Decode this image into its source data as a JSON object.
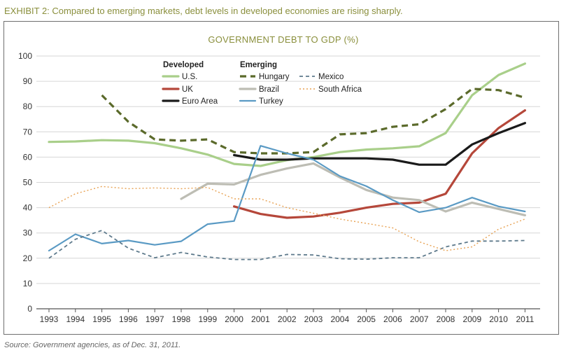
{
  "exhibit_title": "EXHIBIT 2: Compared to emerging markets, debt levels in developed economies are rising sharply.",
  "source_note": "Source: Government agencies, as of Dec. 31, 2011.",
  "chart_data": {
    "type": "line",
    "title": "GOVERNMENT DEBT TO GDP (%)",
    "xlabel": "",
    "ylabel": "",
    "x": [
      "1993",
      "1994",
      "1995",
      "1996",
      "1997",
      "1998",
      "1999",
      "2000",
      "2001",
      "2002",
      "2003",
      "2004",
      "2005",
      "2006",
      "2007",
      "2008",
      "2009",
      "2010",
      "2011"
    ],
    "ylim": [
      0,
      100
    ],
    "yticks": [
      0,
      10,
      20,
      30,
      40,
      50,
      60,
      70,
      80,
      90,
      100
    ],
    "grid": true,
    "legend_groups": [
      {
        "title": "Developed",
        "series": [
          "U.S.",
          "UK",
          "Euro Area"
        ]
      },
      {
        "title": "Emerging",
        "series": [
          "Hungary",
          "Brazil",
          "Turkey",
          "Mexico",
          "South Africa"
        ]
      }
    ],
    "series": [
      {
        "name": "U.S.",
        "color": "#a9cf8a",
        "style": "solid",
        "values": [
          66,
          66.2,
          66.7,
          66.5,
          65.5,
          63.5,
          61,
          57.3,
          56.5,
          58.8,
          60,
          62,
          63,
          63.5,
          64.3,
          69.5,
          84.5,
          92.5,
          97
        ]
      },
      {
        "name": "UK",
        "color": "#b5473a",
        "style": "solid",
        "values": [
          null,
          null,
          null,
          null,
          null,
          null,
          null,
          40.5,
          37.5,
          36,
          36.5,
          38,
          40,
          41.5,
          42,
          45.5,
          61.5,
          71.5,
          78.5
        ]
      },
      {
        "name": "Euro Area",
        "color": "#1a1a1a",
        "style": "solid",
        "values": [
          null,
          null,
          null,
          null,
          null,
          null,
          null,
          60.8,
          59,
          59,
          59.5,
          59.5,
          59.5,
          59,
          57,
          57,
          65,
          69.5,
          73.5
        ]
      },
      {
        "name": "Hungary",
        "color": "#5b6a2b",
        "style": "dashed",
        "values": [
          null,
          null,
          84.5,
          74,
          67,
          66.5,
          67,
          62,
          61.5,
          61.5,
          62,
          69,
          69.5,
          72,
          73,
          79,
          87,
          86.5,
          83.5
        ]
      },
      {
        "name": "Brazil",
        "color": "#bdbdb4",
        "style": "solid",
        "values": [
          null,
          null,
          null,
          null,
          null,
          43.5,
          49.5,
          49.2,
          53,
          55.5,
          57.5,
          52,
          47,
          44,
          43,
          38.5,
          42,
          39.5,
          37
        ]
      },
      {
        "name": "Turkey",
        "color": "#5a9ac4",
        "style": "solid",
        "values": [
          23,
          29.5,
          25.8,
          27,
          25.3,
          26.7,
          33.5,
          34.7,
          64.5,
          61.5,
          59,
          52.5,
          48.5,
          43,
          38.2,
          40,
          44,
          40.5,
          38.5
        ]
      },
      {
        "name": "Mexico",
        "color": "#5e7a8c",
        "style": "dashed",
        "values": [
          20,
          27.5,
          31,
          24,
          20.2,
          22.3,
          20.5,
          19.5,
          19.5,
          21.5,
          21.3,
          19.8,
          19.6,
          20.2,
          20.2,
          24.5,
          26.8,
          26.8,
          27
        ]
      },
      {
        "name": "South Africa",
        "color": "#e8a253",
        "style": "dotted",
        "values": [
          40,
          45.5,
          48.4,
          47.5,
          47.8,
          47.5,
          48,
          43.5,
          43.5,
          40,
          37.8,
          35.5,
          33.8,
          32,
          26.5,
          23,
          24.5,
          31.5,
          35.5
        ]
      }
    ]
  }
}
